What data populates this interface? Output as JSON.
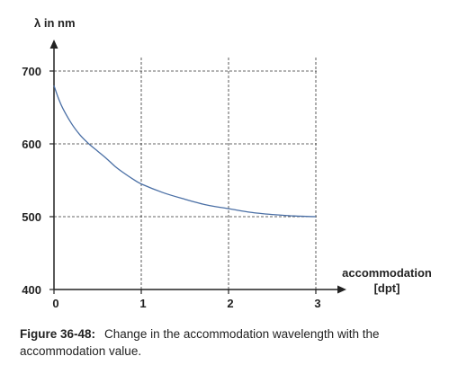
{
  "chart_data": {
    "type": "line",
    "ylabel": "λ in nm",
    "xlabel_line1": "accommodation",
    "xlabel_line2": "[dpt]",
    "xlim": [
      0,
      3
    ],
    "ylim": [
      400,
      700
    ],
    "xticks": [
      0,
      1,
      2,
      3
    ],
    "yticks": [
      400,
      500,
      600,
      700
    ],
    "grid": true,
    "series": [
      {
        "color": "#4a6fa5",
        "x": [
          0,
          0.05,
          0.1,
          0.2,
          0.3,
          0.4,
          0.5,
          0.6,
          0.7,
          0.8,
          0.9,
          1.0,
          1.25,
          1.5,
          1.75,
          2.0,
          2.25,
          2.5,
          2.75,
          3.0
        ],
        "y": [
          680,
          663,
          649,
          628,
          612,
          600,
          590,
          580,
          569,
          560,
          552,
          545,
          533,
          524,
          516,
          511,
          506,
          503,
          501,
          500
        ]
      }
    ]
  },
  "caption": {
    "label": "Figure 36-48:",
    "text": "Change in the accommodation wavelength with the accommodation value."
  }
}
